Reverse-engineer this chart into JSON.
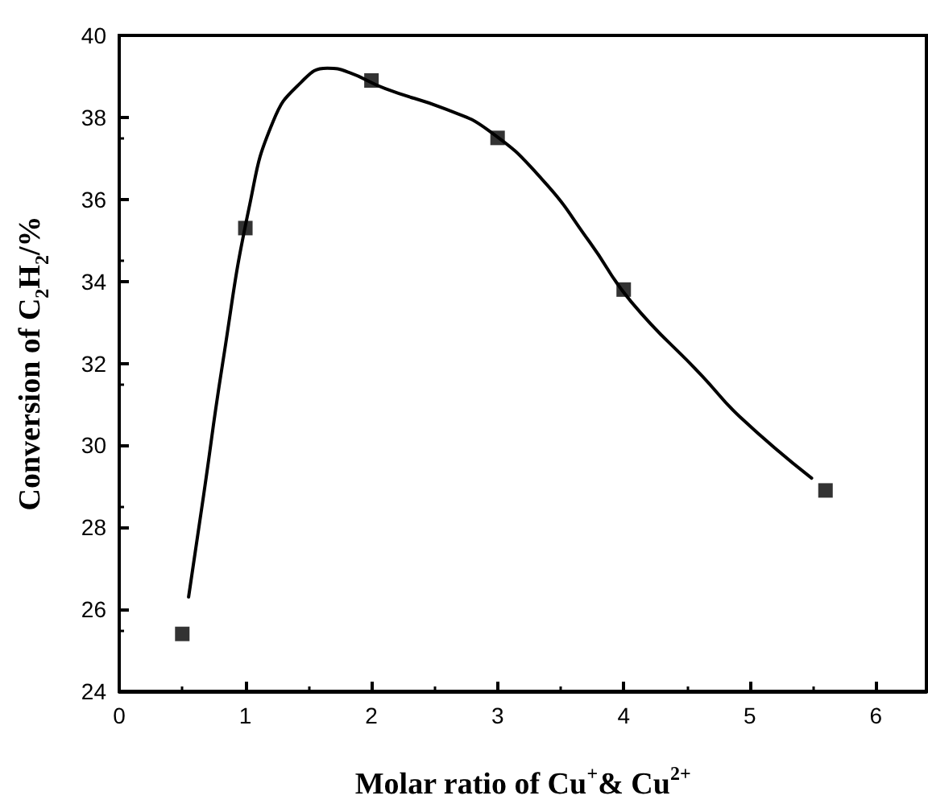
{
  "chart_data": {
    "type": "scatter",
    "xlabel": "Molar ratio of Cu$^{+}$& Cu$^{2+}$",
    "ylabel": "Conversion of C$_{2}$H$_{2}$/%",
    "x": [
      0.5,
      1,
      2,
      3,
      4,
      5.6
    ],
    "series": [
      {
        "color": "#000000",
        "marker": "square",
        "values": [
          25.4,
          35.3,
          38.9,
          37.5,
          33.8,
          28.9
        ]
      },
      {
        "type": "line",
        "color": "#000000",
        "marker": "none",
        "line_style": "solid",
        "x": [
          0.55,
          0.67,
          0.82,
          1.03,
          1.22,
          1.44,
          1.65,
          1.82,
          2.11,
          2.59,
          2.92,
          3.35,
          3.73,
          4.06,
          4.62,
          4.92,
          5.49
        ],
        "values": [
          26.3,
          28.8,
          32.0,
          35.8,
          37.9,
          38.85,
          39.2,
          39.1,
          38.7,
          38.2,
          37.7,
          36.5,
          34.96,
          33.5,
          31.7,
          30.7,
          29.2
        ]
      }
    ],
    "xlim": [
      0,
      6.4
    ],
    "xticks": [
      0,
      1,
      2,
      3,
      4,
      5,
      6
    ],
    "ylim": [
      24,
      40
    ],
    "yticks": [
      24,
      26,
      28,
      30,
      32,
      34,
      36,
      38,
      40
    ],
    "grid": false
  }
}
